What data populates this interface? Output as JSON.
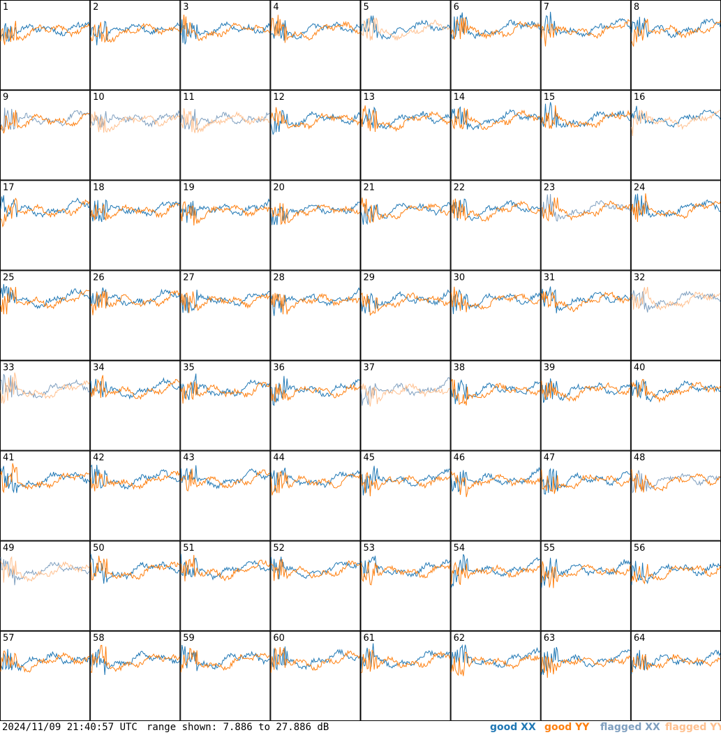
{
  "chart_data": {
    "type": "line",
    "title": "",
    "panels": [
      {
        "label": "1",
        "xx": "good",
        "yy": "good"
      },
      {
        "label": "2",
        "xx": "good",
        "yy": "good"
      },
      {
        "label": "3",
        "xx": "good",
        "yy": "good"
      },
      {
        "label": "4",
        "xx": "good",
        "yy": "good"
      },
      {
        "label": "5",
        "xx": "good",
        "yy": "flagged"
      },
      {
        "label": "6",
        "xx": "good",
        "yy": "good"
      },
      {
        "label": "7",
        "xx": "good",
        "yy": "good"
      },
      {
        "label": "8",
        "xx": "good",
        "yy": "good"
      },
      {
        "label": "9",
        "xx": "flagged",
        "yy": "good"
      },
      {
        "label": "10",
        "xx": "flagged",
        "yy": "flagged"
      },
      {
        "label": "11",
        "xx": "flagged",
        "yy": "flagged"
      },
      {
        "label": "12",
        "xx": "good",
        "yy": "good"
      },
      {
        "label": "13",
        "xx": "good",
        "yy": "good"
      },
      {
        "label": "14",
        "xx": "good",
        "yy": "good"
      },
      {
        "label": "15",
        "xx": "good",
        "yy": "good"
      },
      {
        "label": "16",
        "xx": "good",
        "yy": "flagged"
      },
      {
        "label": "17",
        "xx": "good",
        "yy": "good"
      },
      {
        "label": "18",
        "xx": "good",
        "yy": "good"
      },
      {
        "label": "19",
        "xx": "good",
        "yy": "good"
      },
      {
        "label": "20",
        "xx": "good",
        "yy": "good"
      },
      {
        "label": "21",
        "xx": "good",
        "yy": "good"
      },
      {
        "label": "22",
        "xx": "good",
        "yy": "good"
      },
      {
        "label": "23",
        "xx": "flagged",
        "yy": "good"
      },
      {
        "label": "24",
        "xx": "good",
        "yy": "good"
      },
      {
        "label": "25",
        "xx": "good",
        "yy": "good"
      },
      {
        "label": "26",
        "xx": "good",
        "yy": "good"
      },
      {
        "label": "27",
        "xx": "good",
        "yy": "good"
      },
      {
        "label": "28",
        "xx": "good",
        "yy": "good"
      },
      {
        "label": "29",
        "xx": "good",
        "yy": "good"
      },
      {
        "label": "30",
        "xx": "good",
        "yy": "good"
      },
      {
        "label": "31",
        "xx": "good",
        "yy": "good"
      },
      {
        "label": "32",
        "xx": "flagged",
        "yy": "flagged"
      },
      {
        "label": "33",
        "xx": "flagged",
        "yy": "flagged"
      },
      {
        "label": "34",
        "xx": "good",
        "yy": "good"
      },
      {
        "label": "35",
        "xx": "good",
        "yy": "good"
      },
      {
        "label": "36",
        "xx": "good",
        "yy": "good"
      },
      {
        "label": "37",
        "xx": "flagged",
        "yy": "flagged"
      },
      {
        "label": "38",
        "xx": "good",
        "yy": "good"
      },
      {
        "label": "39",
        "xx": "good",
        "yy": "good"
      },
      {
        "label": "40",
        "xx": "good",
        "yy": "good"
      },
      {
        "label": "41",
        "xx": "good",
        "yy": "good"
      },
      {
        "label": "42",
        "xx": "good",
        "yy": "good"
      },
      {
        "label": "43",
        "xx": "good",
        "yy": "good"
      },
      {
        "label": "44",
        "xx": "good",
        "yy": "good"
      },
      {
        "label": "45",
        "xx": "good",
        "yy": "good"
      },
      {
        "label": "46",
        "xx": "good",
        "yy": "good"
      },
      {
        "label": "47",
        "xx": "good",
        "yy": "good"
      },
      {
        "label": "48",
        "xx": "flagged",
        "yy": "good"
      },
      {
        "label": "49",
        "xx": "flagged",
        "yy": "flagged"
      },
      {
        "label": "50",
        "xx": "good",
        "yy": "good"
      },
      {
        "label": "51",
        "xx": "good",
        "yy": "good"
      },
      {
        "label": "52",
        "xx": "good",
        "yy": "good"
      },
      {
        "label": "53",
        "xx": "good",
        "yy": "good"
      },
      {
        "label": "54",
        "xx": "good",
        "yy": "good"
      },
      {
        "label": "55",
        "xx": "good",
        "yy": "good"
      },
      {
        "label": "56",
        "xx": "good",
        "yy": "good"
      },
      {
        "label": "57",
        "xx": "good",
        "yy": "good"
      },
      {
        "label": "58",
        "xx": "good",
        "yy": "good"
      },
      {
        "label": "59",
        "xx": "good",
        "yy": "good"
      },
      {
        "label": "60",
        "xx": "good",
        "yy": "good"
      },
      {
        "label": "61",
        "xx": "good",
        "yy": "good"
      },
      {
        "label": "62",
        "xx": "good",
        "yy": "good"
      },
      {
        "label": "63",
        "xx": "good",
        "yy": "good"
      },
      {
        "label": "64",
        "xx": "good",
        "yy": "good"
      }
    ],
    "ylim": [
      7.886,
      27.886
    ],
    "grid": false,
    "legend_placement": "bottom-right"
  },
  "footer": {
    "timestamp": "2024/11/09 21:40:57 UTC",
    "range_text": "range shown: 7.886 to 27.886 dB"
  },
  "legend": {
    "good_xx": "good XX",
    "good_yy": "good YY",
    "flagged_xx": "flagged XX",
    "flagged_yy": "flagged YY"
  },
  "colors": {
    "good_xx": "#1f77b4",
    "good_yy": "#ff7f0e",
    "flagged_xx": "#7f9fbf",
    "flagged_yy": "#ffc08f"
  }
}
